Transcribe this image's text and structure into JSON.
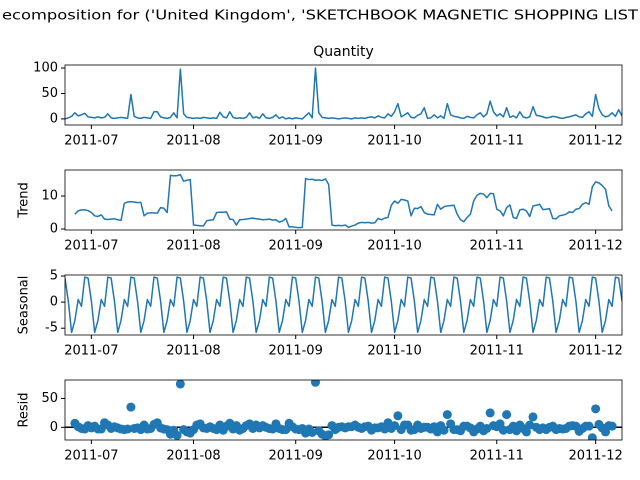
{
  "title": "ecomposition for ('United Kingdom', 'SKETCHBOOK MAGNETIC SHOPPING LIST",
  "categories": [
    null,
    null,
    null,
    null,
    null,
    null,
    null,
    null,
    "2011-07",
    null,
    null,
    null,
    null,
    null,
    null,
    null,
    null,
    null,
    null,
    null,
    null,
    null,
    null,
    null,
    null,
    null,
    null,
    null,
    null,
    null,
    null,
    null,
    null,
    null,
    null,
    null,
    null,
    null,
    null,
    "2011-08",
    null,
    null,
    null,
    null,
    null,
    null,
    null,
    null,
    null,
    null,
    null,
    null,
    null,
    null,
    null,
    null,
    null,
    null,
    null,
    null,
    null,
    null,
    null,
    null,
    null,
    null,
    null,
    null,
    null,
    null,
    "2011-09",
    null,
    null,
    null,
    null,
    null,
    null,
    null,
    null,
    null,
    null,
    null,
    null,
    null,
    null,
    null,
    null,
    null,
    null,
    null,
    null,
    null,
    null,
    null,
    null,
    null,
    null,
    null,
    null,
    null,
    "2011-10",
    null,
    null,
    null,
    null,
    null,
    null,
    null,
    null,
    null,
    null,
    null,
    null,
    null,
    null,
    null,
    null,
    null,
    null,
    null,
    null,
    null,
    null,
    null,
    null,
    null,
    null,
    null,
    null,
    null,
    null,
    "2011-11",
    null,
    null,
    null,
    null,
    null,
    null,
    null,
    null,
    null,
    null,
    null,
    null,
    null,
    null,
    null,
    null,
    null,
    null,
    null,
    null,
    null,
    null,
    null,
    null,
    null,
    null,
    null,
    null,
    null,
    "2011-12",
    null,
    null,
    null,
    null,
    null,
    null,
    null,
    null
  ],
  "chart_data": [
    {
      "type": "line",
      "title": "Quantity",
      "color": "#1f77b4",
      "ylim": [
        -12,
        106
      ],
      "yticks": [
        0,
        50,
        100
      ],
      "values": [
        0,
        2,
        5,
        12,
        6,
        8,
        11,
        4,
        3,
        2,
        4,
        2,
        3,
        10,
        2,
        1,
        2,
        3,
        2,
        1,
        48,
        5,
        2,
        1,
        3,
        2,
        1,
        14,
        14,
        4,
        2,
        1,
        3,
        12,
        2,
        98,
        10,
        3,
        2,
        1,
        2,
        1,
        3,
        2,
        1,
        2,
        1,
        13,
        4,
        2,
        14,
        3,
        1,
        2,
        1,
        3,
        12,
        2,
        4,
        1,
        10,
        2,
        1,
        3,
        8,
        1,
        4,
        0,
        2,
        0,
        2,
        1,
        0,
        6,
        12,
        2,
        100,
        12,
        3,
        2,
        1,
        2,
        1,
        0,
        1,
        2,
        1,
        0,
        2,
        1,
        2,
        1,
        3,
        4,
        2,
        6,
        3,
        2,
        10,
        5,
        14,
        30,
        4,
        8,
        12,
        3,
        2,
        7,
        10,
        22,
        1,
        2,
        8,
        2,
        6,
        1,
        30,
        8,
        5,
        4,
        2,
        1,
        5,
        3,
        2,
        8,
        12,
        4,
        10,
        35,
        14,
        6,
        10,
        4,
        22,
        3,
        6,
        2,
        14,
        4,
        2,
        4,
        24,
        7,
        6,
        4,
        2,
        3,
        5,
        4,
        2,
        1,
        3,
        4,
        6,
        8,
        4,
        3,
        10,
        14,
        5,
        48,
        20,
        8,
        4,
        6,
        12,
        5,
        18,
        6
      ]
    },
    {
      "type": "line",
      "ylabel": "Trend",
      "color": "#1f77b4",
      "ylim": [
        -0.3,
        17.9
      ],
      "yticks": [
        0,
        10
      ],
      "values": [
        null,
        null,
        null,
        4.5,
        5.5,
        5.8,
        5.8,
        5.6,
        5,
        4,
        3.8,
        4.3,
        3,
        2.9,
        3,
        3.1,
        2.8,
        2.6,
        7.8,
        8.2,
        8.3,
        8.2,
        8,
        8.1,
        4,
        4.8,
        4.9,
        4.9,
        4.8,
        6.5,
        6.3,
        5,
        16.3,
        16.1,
        16.2,
        16.5,
        14.5,
        14.8,
        15,
        1.2,
        1.1,
        1,
        0.9,
        2.5,
        2.7,
        2.8,
        5,
        5.1,
        5.1,
        5.2,
        3,
        2.9,
        1.2,
        2.8,
        2.9,
        3,
        3.2,
        3.3,
        3.1,
        3,
        2.8,
        2.9,
        3,
        2.7,
        2.8,
        2.1,
        2.4,
        3.2,
        0.6,
        0.7,
        0.5,
        0.4,
        0.5,
        15.3,
        15,
        15.1,
        14.8,
        14.9,
        14.7,
        15.2,
        13.5,
        1.2,
        1,
        1.1,
        1,
        1.2,
        0.5,
        0.9,
        1.2,
        1.8,
        2,
        1.9,
        2,
        1.8,
        1.9,
        3.2,
        2.8,
        3.3,
        3.5,
        7.2,
        8.5,
        7.8,
        9,
        8.8,
        8.5,
        4,
        6.3,
        6.2,
        6.8,
        5,
        4.5,
        4.4,
        4.3,
        7.5,
        6,
        6.8,
        7,
        7.1,
        7.2,
        4.5,
        2.8,
        2.2,
        3.5,
        4.5,
        8.5,
        10.2,
        10.8,
        10.6,
        9.5,
        10.8,
        10.7,
        6,
        5.5,
        4,
        6.5,
        7.3,
        3.5,
        3.2,
        5.8,
        6,
        5.5,
        3.8,
        7,
        7.2,
        7.5,
        5.9,
        6,
        6.2,
        3.2,
        3.1,
        4,
        4.2,
        4.5,
        5.2,
        5,
        6,
        6.2,
        7.5,
        8,
        7.5,
        12.8,
        14.3,
        14,
        13.2,
        12,
        7,
        5.5,
        null,
        null,
        null
      ]
    },
    {
      "type": "line",
      "ylabel": "Seasonal",
      "color": "#1f77b4",
      "ylim": [
        -6.3,
        5.2
      ],
      "yticks": [
        -5,
        0,
        5
      ],
      "values": [
        4.6,
        0.2,
        -5.8,
        -3.5,
        0.5,
        -0.8,
        4.8,
        4.6,
        0.2,
        -5.8,
        -3.5,
        0.5,
        -0.8,
        4.8,
        4.6,
        0.2,
        -5.8,
        -3.5,
        0.5,
        -0.8,
        4.8,
        4.6,
        0.2,
        -5.8,
        -3.5,
        0.5,
        -0.8,
        4.8,
        4.6,
        0.2,
        -5.8,
        -3.5,
        0.5,
        -0.8,
        4.8,
        4.6,
        0.2,
        -5.8,
        -3.5,
        0.5,
        -0.8,
        4.8,
        4.6,
        0.2,
        -5.8,
        -3.5,
        0.5,
        -0.8,
        4.8,
        4.6,
        0.2,
        -5.8,
        -3.5,
        0.5,
        -0.8,
        4.8,
        4.6,
        0.2,
        -5.8,
        -3.5,
        0.5,
        -0.8,
        4.8,
        4.6,
        0.2,
        -5.8,
        -3.5,
        0.5,
        -0.8,
        4.8,
        4.6,
        0.2,
        -5.8,
        -3.5,
        0.5,
        -0.8,
        4.8,
        4.6,
        0.2,
        -5.8,
        -3.5,
        0.5,
        -0.8,
        4.8,
        4.6,
        0.2,
        -5.8,
        -3.5,
        0.5,
        -0.8,
        4.8,
        4.6,
        0.2,
        -5.8,
        -3.5,
        0.5,
        -0.8,
        4.8,
        4.6,
        0.2,
        -5.8,
        -3.5,
        0.5,
        -0.8,
        4.8,
        4.6,
        0.2,
        -5.8,
        -3.5,
        0.5,
        -0.8,
        4.8,
        4.6,
        0.2,
        -5.8,
        -3.5,
        0.5,
        -0.8,
        4.8,
        4.6,
        0.2,
        -5.8,
        -3.5,
        0.5,
        -0.8,
        4.8,
        4.6,
        0.2,
        -5.8,
        -3.5,
        0.5,
        -0.8,
        4.8,
        4.6,
        0.2,
        -5.8,
        -3.5,
        0.5,
        -0.8,
        4.8,
        4.6,
        0.2,
        -5.8,
        -3.5,
        0.5,
        -0.8,
        4.8,
        4.6,
        0.2,
        -5.8,
        -3.5,
        0.5,
        -0.8,
        4.8,
        4.6,
        0.2,
        -5.8,
        -3.5,
        0.5,
        -0.8,
        4.8,
        4.6,
        0.2,
        -5.8,
        -3.5,
        0.5,
        -0.8,
        4.8,
        4.6,
        0.2
      ]
    },
    {
      "type": "scatter",
      "ylabel": "Resid",
      "color": "#1f77b4",
      "zero_line_color": "#000000",
      "ylim": [
        -22,
        82
      ],
      "yticks": [
        0,
        50
      ],
      "values": [
        null,
        null,
        null,
        7,
        1,
        -2,
        -3,
        3,
        -1,
        2,
        -3,
        -3,
        8,
        4,
        -2,
        1,
        -1,
        -3,
        -4,
        -3,
        35,
        -2,
        -1,
        -4,
        4,
        -3,
        -2,
        5,
        8,
        -1,
        -3,
        -4,
        -12,
        -5,
        -14,
        75,
        -4,
        -8,
        -10,
        -4,
        4,
        6,
        -1,
        -2,
        1,
        -2,
        -4,
        4,
        -5,
        2,
        7,
        -3,
        3,
        -5,
        -2,
        3,
        6,
        -2,
        4,
        -1,
        3,
        0,
        -2,
        -3,
        6,
        -2,
        -4,
        -4,
        7,
        1,
        -3,
        -4,
        -2,
        -10,
        -3,
        -9,
        78,
        -6,
        -12,
        -15,
        -13,
        3,
        -4,
        0,
        1,
        -1,
        1,
        1,
        4,
        0,
        -2,
        1,
        2,
        -5,
        -1,
        -1,
        1,
        -3,
        8,
        -2,
        3,
        20,
        -4,
        4,
        4,
        -5,
        -4,
        4,
        -2,
        0,
        0,
        -3,
        1,
        -8,
        3,
        -5,
        22,
        6,
        -4,
        -4,
        -6,
        2,
        2,
        -1,
        -8,
        -3,
        2,
        -6,
        -2,
        25,
        3,
        1,
        6,
        -5,
        22,
        -4,
        2,
        -6,
        4,
        -2,
        -8,
        4,
        18,
        0,
        -4,
        -1,
        -4,
        0,
        2,
        -4,
        -2,
        -3,
        -2,
        2,
        3,
        2,
        -7,
        -2,
        2,
        2,
        -18,
        32,
        5,
        -1,
        -8,
        3,
        2,
        null,
        null,
        null
      ]
    }
  ]
}
